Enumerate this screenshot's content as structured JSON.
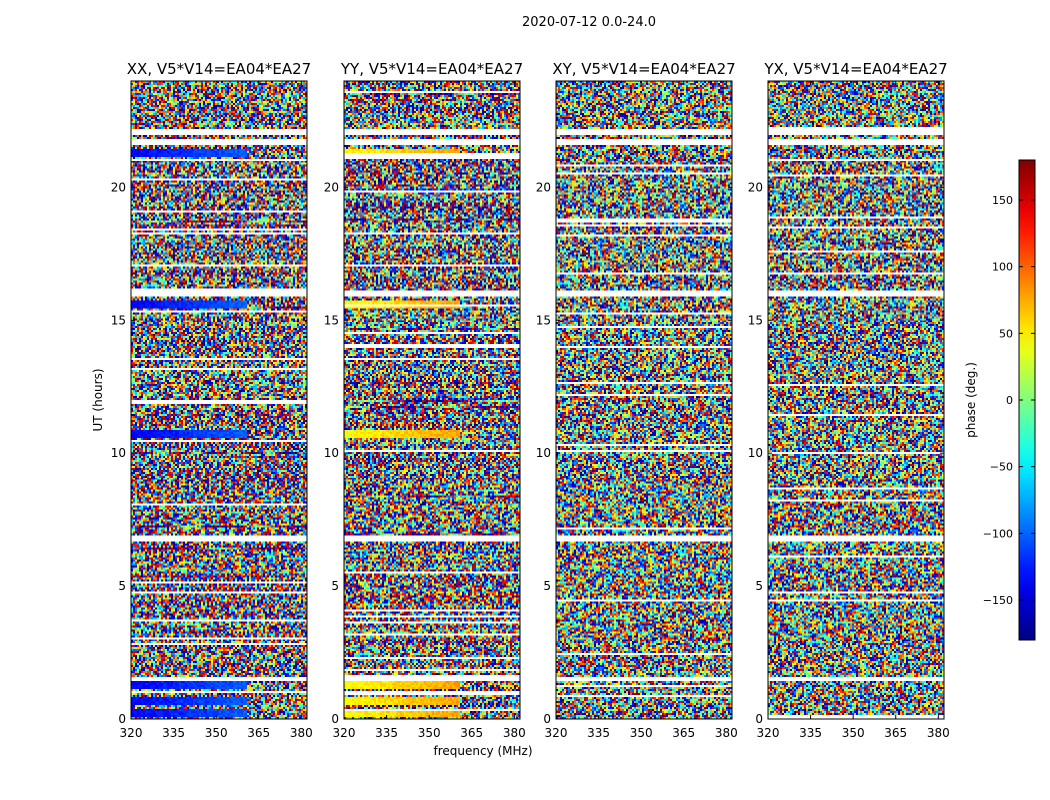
{
  "figure": {
    "suptitle": "2020-07-12 0.0-24.0"
  },
  "chart_data": {
    "type": "heatmap",
    "panels": [
      {
        "title": "XX, V5*V14=EA04*EA27",
        "polarization": "XX"
      },
      {
        "title": "YY, V5*V14=EA04*EA27",
        "polarization": "YY"
      },
      {
        "title": "XY, V5*V14=EA04*EA27",
        "polarization": "XY"
      },
      {
        "title": "YX, V5*V14=EA04*EA27",
        "polarization": "YX"
      }
    ],
    "xlabel": "frequency (MHz)",
    "ylabel": "UT (hours)",
    "xlim": [
      320,
      382
    ],
    "ylim": [
      0,
      24
    ],
    "xticks": [
      320,
      335,
      350,
      365,
      380
    ],
    "yticks": [
      0,
      5,
      10,
      15,
      20
    ],
    "colorbar": {
      "label": "phase (deg.)",
      "range": [
        -180,
        180
      ],
      "ticks": [
        150,
        100,
        50,
        0,
        -50,
        -100,
        -150
      ],
      "tick_labels": [
        "150",
        "100",
        "50",
        "0",
        "−50",
        "−100",
        "−150"
      ],
      "colormap": "jet"
    },
    "blank_ut_hours": [
      1.5,
      6.8,
      16.0,
      21.7,
      22.1
    ],
    "coherent_bands_ut_hours": {
      "XX": [
        0.2,
        0.7,
        1.3,
        10.7,
        15.6,
        21.3
      ],
      "YY": [
        0.2,
        0.7,
        1.3,
        10.7,
        15.6,
        21.3
      ]
    },
    "grid": false
  }
}
